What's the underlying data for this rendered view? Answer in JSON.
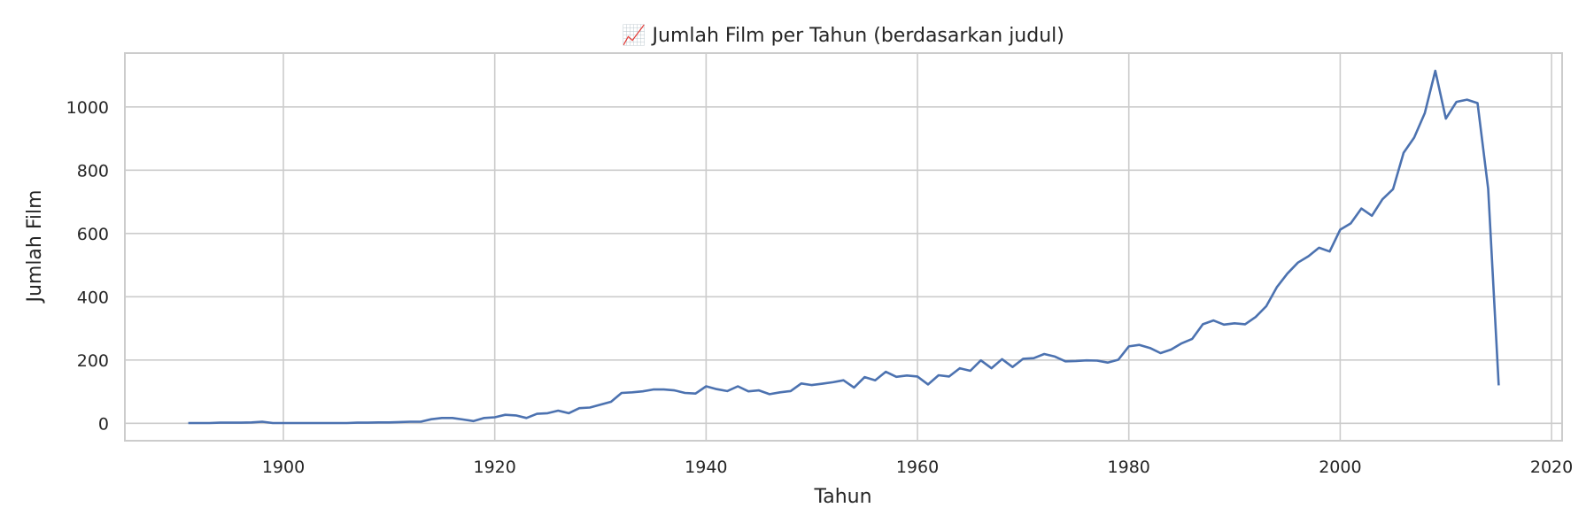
{
  "chart_data": {
    "type": "line",
    "title": "📈 Jumlah Film per Tahun (berdasarkan judul)",
    "xlabel": "Tahun",
    "ylabel": "Jumlah Film",
    "xlim": [
      1885,
      2021
    ],
    "ylim": [
      -55,
      1170
    ],
    "xticks": [
      1900,
      1920,
      1940,
      1960,
      1980,
      2000,
      2020
    ],
    "yticks": [
      0,
      200,
      400,
      600,
      800,
      1000
    ],
    "grid": true,
    "legend": "none",
    "series": [
      {
        "color": "#4c72b0",
        "x": [
          1891,
          1892,
          1893,
          1894,
          1895,
          1896,
          1897,
          1898,
          1899,
          1900,
          1901,
          1902,
          1903,
          1904,
          1905,
          1906,
          1907,
          1908,
          1909,
          1910,
          1911,
          1912,
          1913,
          1914,
          1915,
          1916,
          1917,
          1918,
          1919,
          1920,
          1921,
          1922,
          1923,
          1924,
          1925,
          1926,
          1927,
          1928,
          1929,
          1930,
          1931,
          1932,
          1933,
          1934,
          1935,
          1936,
          1937,
          1938,
          1939,
          1940,
          1941,
          1942,
          1943,
          1944,
          1945,
          1946,
          1947,
          1948,
          1949,
          1950,
          1951,
          1952,
          1953,
          1954,
          1955,
          1956,
          1957,
          1958,
          1959,
          1960,
          1961,
          1962,
          1963,
          1964,
          1965,
          1966,
          1967,
          1968,
          1969,
          1970,
          1971,
          1972,
          1973,
          1974,
          1975,
          1976,
          1977,
          1978,
          1979,
          1980,
          1981,
          1982,
          1983,
          1984,
          1985,
          1986,
          1987,
          1988,
          1989,
          1990,
          1991,
          1992,
          1993,
          1994,
          1995,
          1996,
          1997,
          1998,
          1999,
          2000,
          2001,
          2002,
          2003,
          2004,
          2005,
          2006,
          2007,
          2008,
          2009,
          2010,
          2011,
          2012,
          2013,
          2014,
          2015
        ],
        "values": [
          1,
          1,
          1,
          2,
          2,
          2,
          3,
          5,
          1,
          1,
          1,
          1,
          1,
          1,
          1,
          1,
          2,
          2,
          3,
          3,
          4,
          5,
          5,
          13,
          17,
          17,
          12,
          7,
          17,
          19,
          27,
          25,
          17,
          30,
          32,
          40,
          32,
          48,
          50,
          59,
          68,
          96,
          98,
          101,
          107,
          107,
          104,
          96,
          94,
          117,
          108,
          102,
          117,
          101,
          104,
          92,
          98,
          102,
          126,
          121,
          125,
          130,
          136,
          113,
          146,
          136,
          163,
          147,
          151,
          148,
          123,
          152,
          148,
          174,
          166,
          199,
          174,
          203,
          178,
          204,
          206,
          219,
          211,
          196,
          197,
          199,
          198,
          192,
          201,
          243,
          248,
          238,
          222,
          233,
          253,
          267,
          313,
          325,
          312,
          316,
          313,
          336,
          370,
          430,
          473,
          508,
          528,
          555,
          543,
          612,
          632,
          679,
          656,
          708,
          740,
          855,
          903,
          980,
          1114,
          963,
          1016,
          1023,
          1012,
          741,
          120
        ]
      }
    ]
  }
}
